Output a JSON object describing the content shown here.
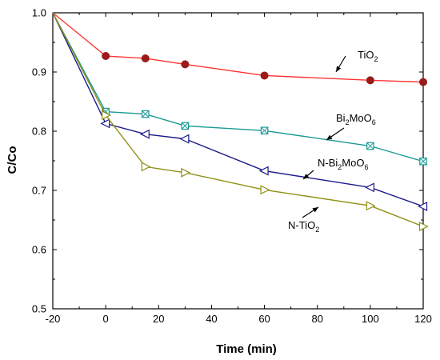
{
  "chart_data": {
    "type": "line",
    "title": "",
    "xlabel": "Time (min)",
    "ylabel": "C/Co",
    "xlim": [
      -20,
      120
    ],
    "ylim": [
      0.5,
      1.0
    ],
    "xticks": [
      -20,
      0,
      20,
      40,
      60,
      80,
      100,
      120
    ],
    "xtick_labels": [
      "-20",
      "0",
      "20",
      "40",
      "60",
      "80",
      "100",
      "120"
    ],
    "yticks": [
      0.5,
      0.6,
      0.7,
      0.8,
      0.9,
      1.0
    ],
    "ytick_labels": [
      "0.5",
      "0.6",
      "0.7",
      "0.8",
      "0.9",
      "1.0"
    ],
    "grid": false,
    "legend": "none (series labeled by annotations with arrows)",
    "series": [
      {
        "name": "TiO2",
        "label_main": "TiO",
        "label_sub": "2",
        "line_color": "#ff3333",
        "marker_color": "#9b1b1b",
        "marker": "filled-circle",
        "x": [
          -20,
          0,
          15,
          30,
          60,
          100,
          120
        ],
        "y": [
          1.0,
          0.927,
          0.923,
          0.913,
          0.894,
          0.886,
          0.883
        ]
      },
      {
        "name": "Bi2MoO6",
        "label_parts": [
          [
            "Bi",
            false
          ],
          [
            "2",
            true
          ],
          [
            "MoO",
            false
          ],
          [
            "6",
            true
          ]
        ],
        "line_color": "#1a9a94",
        "marker_color": "#1a9a94",
        "marker": "crossed-square",
        "x": [
          -20,
          0,
          15,
          30,
          60,
          100,
          120
        ],
        "y": [
          1.0,
          0.833,
          0.829,
          0.809,
          0.801,
          0.775,
          0.749
        ]
      },
      {
        "name": "N-Bi2MoO6",
        "label_parts": [
          [
            "N-Bi",
            false
          ],
          [
            "2",
            true
          ],
          [
            "MoO",
            false
          ],
          [
            "6",
            true
          ]
        ],
        "line_color": "#1c1c8c",
        "marker_color": "#1c1c8c",
        "marker": "left-triangle",
        "x": [
          -20,
          0,
          15,
          30,
          60,
          100,
          120
        ],
        "y": [
          1.0,
          0.813,
          0.795,
          0.787,
          0.733,
          0.705,
          0.673
        ]
      },
      {
        "name": "N-TiO2",
        "label_parts": [
          [
            "N-TiO",
            false
          ],
          [
            "2",
            true
          ]
        ],
        "line_color": "#8f8f14",
        "marker_color": "#8f8f14",
        "marker": "right-triangle",
        "x": [
          -20,
          0,
          15,
          30,
          60,
          100,
          120
        ],
        "y": [
          1.0,
          0.827,
          0.74,
          0.73,
          0.701,
          0.674,
          0.639
        ]
      }
    ]
  }
}
